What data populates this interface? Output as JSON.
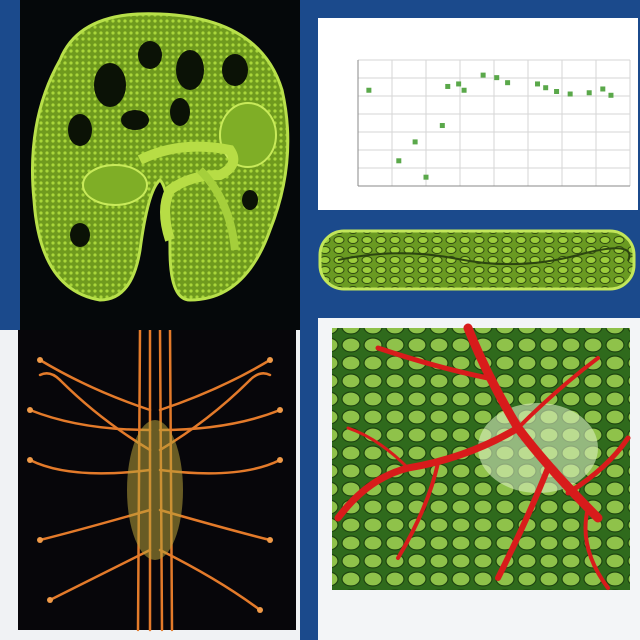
{
  "panels": {
    "kidney": {
      "caption": "",
      "icon": "kidney-cross-section-icon"
    },
    "strip": {
      "icon": "tissue-strip-icon"
    },
    "neuron": {
      "icon": "nerve-fibers-icon"
    },
    "vessel": {
      "caption": "",
      "footer": "",
      "icon": "blood-vessels-icon"
    }
  },
  "chart_data": {
    "type": "scatter",
    "title": "",
    "subtitle": "",
    "xlabel": "",
    "ylabel": "",
    "grid": true,
    "xlim": [
      0,
      10
    ],
    "ylim": [
      0,
      10
    ],
    "x_ticks": [
      "",
      "",
      "",
      "",
      "",
      "",
      "",
      "",
      ""
    ],
    "y_ticks": [
      "",
      "",
      "",
      "",
      "",
      "",
      "",
      ""
    ],
    "series": [
      {
        "x": [
          0.4,
          1.5,
          2.1,
          2.5,
          3.1,
          3.3,
          3.7,
          3.9,
          4.6,
          5.1,
          5.5,
          6.6,
          6.9,
          7.3,
          7.8,
          8.5,
          9.0,
          9.3
        ],
        "y": [
          7.6,
          2.0,
          3.5,
          0.7,
          4.8,
          7.9,
          8.1,
          7.6,
          8.8,
          8.6,
          8.2,
          8.1,
          7.8,
          7.5,
          7.3,
          7.4,
          7.7,
          7.2
        ],
        "color": "#5aa84a"
      }
    ]
  },
  "colors": {
    "background": "#1b4a8c",
    "tissue_green": "#8fbf2a",
    "nerve_orange": "#e37a2a",
    "vessel_red": "#d81b1b"
  }
}
